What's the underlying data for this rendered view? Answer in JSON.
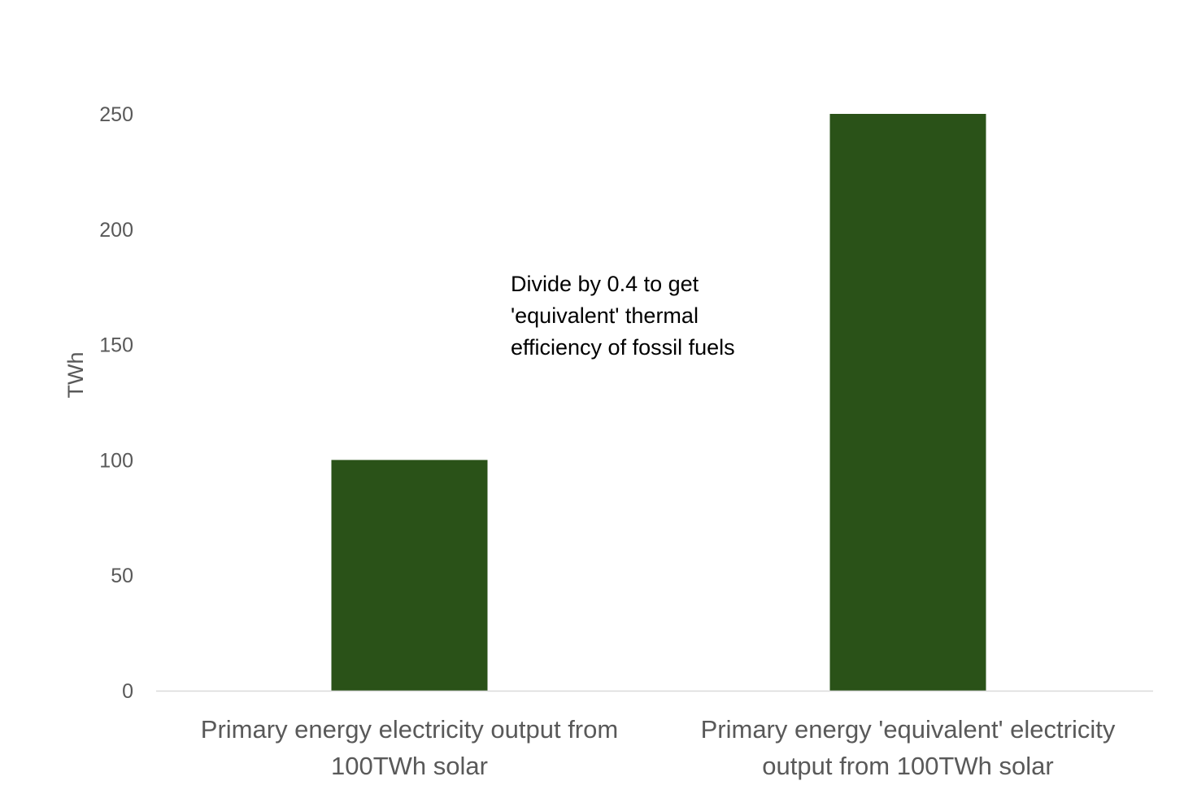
{
  "chart_data": {
    "type": "bar",
    "categories": [
      [
        "Primary energy electricity output from",
        "100TWh solar"
      ],
      [
        "Primary energy 'equivalent' electricity",
        "output from 100TWh solar"
      ]
    ],
    "values": [
      100,
      250
    ],
    "ylabel": "TWh",
    "ylim": [
      0,
      250
    ],
    "yticks": [
      0,
      50,
      100,
      150,
      200,
      250
    ],
    "grid": false,
    "legend": "none",
    "bar_color": "#2a5218",
    "annotation": [
      "Divide by 0.4 to get",
      "'equivalent' thermal",
      "efficiency of fossil fuels"
    ]
  }
}
